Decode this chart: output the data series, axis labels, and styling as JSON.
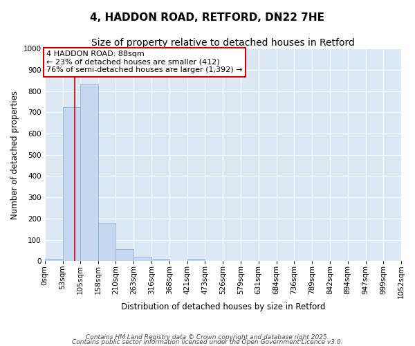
{
  "title": "4, HADDON ROAD, RETFORD, DN22 7HE",
  "subtitle": "Size of property relative to detached houses in Retford",
  "xlabel": "Distribution of detached houses by size in Retford",
  "ylabel": "Number of detached properties",
  "bar_heights": [
    12,
    725,
    830,
    180,
    57,
    20,
    12,
    0,
    10,
    0,
    0,
    0,
    0,
    0,
    0,
    0,
    0,
    0,
    0,
    0
  ],
  "bin_edges": [
    0,
    53,
    105,
    158,
    210,
    263,
    316,
    368,
    421,
    473,
    526,
    579,
    631,
    684,
    736,
    789,
    842,
    894,
    947,
    999,
    1052
  ],
  "bar_color": "#c5d8f0",
  "bar_edgecolor": "#8ab4d8",
  "property_sqm": 88,
  "vline_color": "#cc0000",
  "annotation_line1": "4 HADDON ROAD: 88sqm",
  "annotation_line2": "← 23% of detached houses are smaller (412)",
  "annotation_line3": "76% of semi-detached houses are larger (1,392) →",
  "annotation_box_color": "#cc0000",
  "ylim": [
    0,
    1000
  ],
  "yticks": [
    0,
    100,
    200,
    300,
    400,
    500,
    600,
    700,
    800,
    900,
    1000
  ],
  "background_color": "#dde8f5",
  "grid_color": "#ffffff",
  "footer_line1": "Contains HM Land Registry data © Crown copyright and database right 2025.",
  "footer_line2": "Contains public sector information licensed under the Open Government Licence v3.0.",
  "title_fontsize": 11,
  "subtitle_fontsize": 10,
  "axis_label_fontsize": 8.5,
  "tick_fontsize": 7.5,
  "annotation_fontsize": 8,
  "footer_fontsize": 6.5
}
